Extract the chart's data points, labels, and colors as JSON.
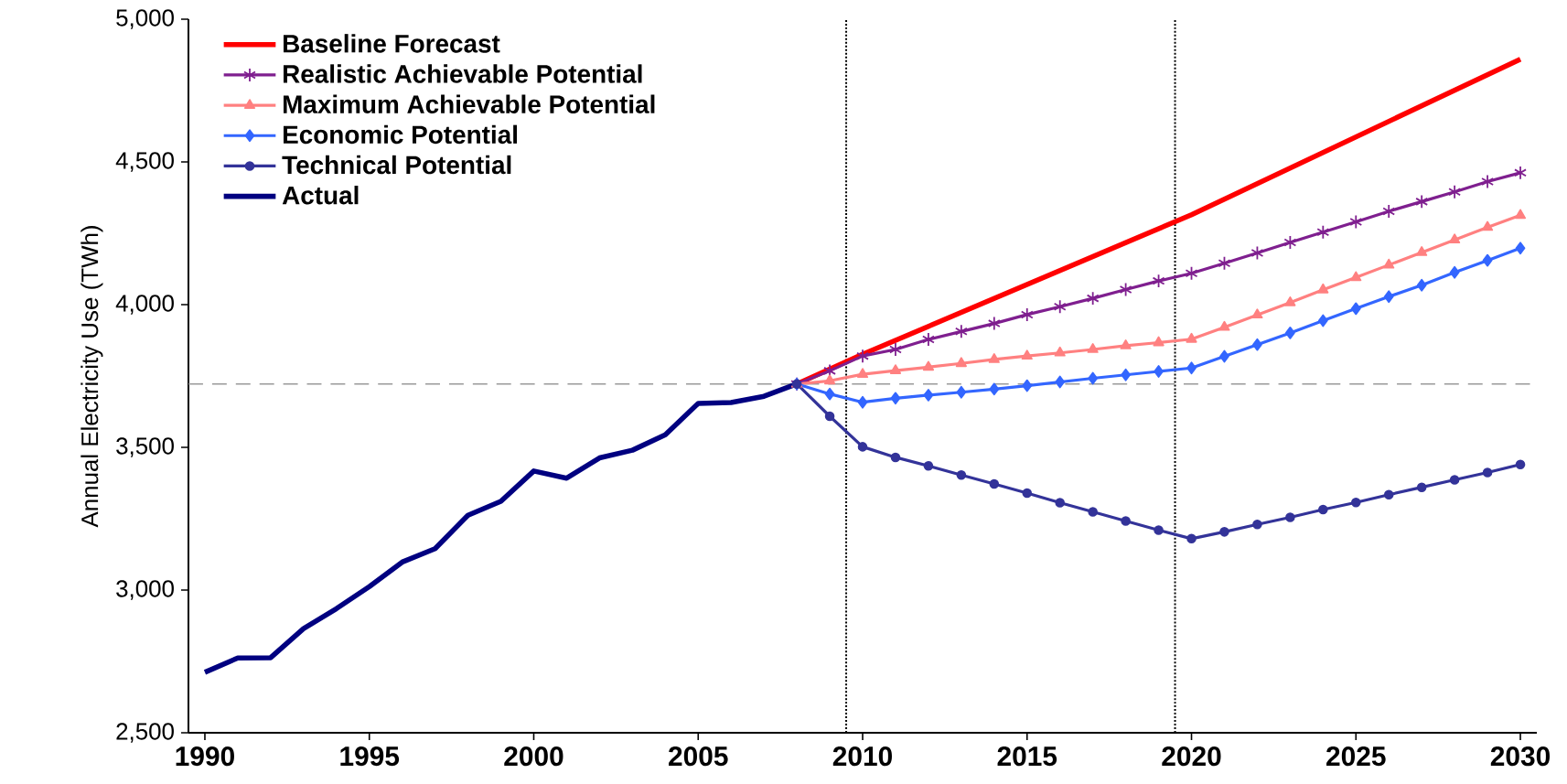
{
  "chart_data": {
    "type": "line",
    "ylabel": "Annual Electricity Use (TWh)",
    "xlim": [
      1989.5,
      2030.5
    ],
    "xticks": [
      1990,
      1995,
      2000,
      2005,
      2010,
      2015,
      2020,
      2025,
      2030
    ],
    "ylim": [
      2500,
      5000
    ],
    "yticks": [
      {
        "value": 2500,
        "label": "2,500"
      },
      {
        "value": 3000,
        "label": "3,000"
      },
      {
        "value": 3500,
        "label": "3,500"
      },
      {
        "value": 4000,
        "label": "4,000"
      },
      {
        "value": 4500,
        "label": "4,500"
      },
      {
        "value": 5000,
        "label": "5,000"
      }
    ],
    "legend": "top left",
    "grid": false,
    "ref_lines": [
      {
        "axis": "x",
        "value": 2009.5,
        "line_style": "dotted",
        "color": "#000000"
      },
      {
        "axis": "x",
        "value": 2019.5,
        "line_style": "dotted",
        "color": "#000000"
      },
      {
        "axis": "y",
        "value": 3722,
        "line_style": "dashed",
        "color": "#999999"
      }
    ],
    "series": [
      {
        "name": "Baseline Forecast",
        "color": "#ff0000",
        "marker": "none",
        "x": [
          2008,
          2010,
          2020,
          2030
        ],
        "values": [
          3722,
          3826,
          4315,
          4860
        ]
      },
      {
        "name": "Realistic Achievable Potential",
        "color": "#7f1f8f",
        "marker": "cross",
        "x": [
          2008,
          2009,
          2010,
          2011,
          2012,
          2013,
          2014,
          2015,
          2016,
          2017,
          2018,
          2019,
          2020,
          2021,
          2022,
          2023,
          2024,
          2025,
          2026,
          2027,
          2028,
          2029,
          2030
        ],
        "values": [
          3722,
          3768,
          3820,
          3843,
          3878,
          3906,
          3934,
          3965,
          3993,
          4022,
          4053,
          4083,
          4110,
          4145,
          4181,
          4218,
          4254,
          4290,
          4327,
          4361,
          4395,
          4431,
          4462
        ]
      },
      {
        "name": "Maximum Achievable Potential",
        "color": "#ff8080",
        "marker": "triangle",
        "x": [
          2008,
          2009,
          2010,
          2011,
          2012,
          2013,
          2014,
          2015,
          2016,
          2017,
          2018,
          2019,
          2020,
          2021,
          2022,
          2023,
          2024,
          2025,
          2026,
          2027,
          2028,
          2029,
          2030
        ],
        "values": [
          3722,
          3733,
          3756,
          3769,
          3781,
          3794,
          3808,
          3820,
          3831,
          3843,
          3856,
          3867,
          3879,
          3921,
          3964,
          4007,
          4052,
          4095,
          4139,
          4183,
          4227,
          4271,
          4313
        ]
      },
      {
        "name": "Economic Potential",
        "color": "#3366ff",
        "marker": "diamond",
        "x": [
          2008,
          2009,
          2010,
          2011,
          2012,
          2013,
          2014,
          2015,
          2016,
          2017,
          2018,
          2019,
          2020,
          2021,
          2022,
          2023,
          2024,
          2025,
          2026,
          2027,
          2028,
          2029,
          2030
        ],
        "values": [
          3722,
          3687,
          3658,
          3672,
          3683,
          3693,
          3704,
          3716,
          3729,
          3742,
          3754,
          3766,
          3778,
          3819,
          3860,
          3901,
          3944,
          3986,
          4028,
          4068,
          4113,
          4155,
          4198
        ]
      },
      {
        "name": "Technical Potential",
        "color": "#333399",
        "marker": "circle",
        "x": [
          2008,
          2009,
          2010,
          2011,
          2012,
          2013,
          2014,
          2015,
          2016,
          2017,
          2018,
          2019,
          2020,
          2021,
          2022,
          2023,
          2024,
          2025,
          2026,
          2027,
          2028,
          2029,
          2030
        ],
        "values": [
          3722,
          3609,
          3502,
          3465,
          3435,
          3403,
          3372,
          3340,
          3306,
          3274,
          3242,
          3210,
          3180,
          3204,
          3230,
          3255,
          3282,
          3307,
          3334,
          3360,
          3386,
          3412,
          3440
        ]
      },
      {
        "name": "Actual",
        "color": "#000080",
        "marker": "none",
        "x": [
          1990,
          1991,
          1992,
          1993,
          1994,
          1995,
          1996,
          1997,
          1998,
          1999,
          2000,
          2001,
          2002,
          2003,
          2004,
          2005,
          2006,
          2007,
          2008
        ],
        "values": [
          2712,
          2762,
          2763,
          2865,
          2935,
          3012,
          3098,
          3145,
          3262,
          3311,
          3417,
          3392,
          3463,
          3490,
          3544,
          3654,
          3657,
          3679,
          3722
        ]
      }
    ]
  }
}
